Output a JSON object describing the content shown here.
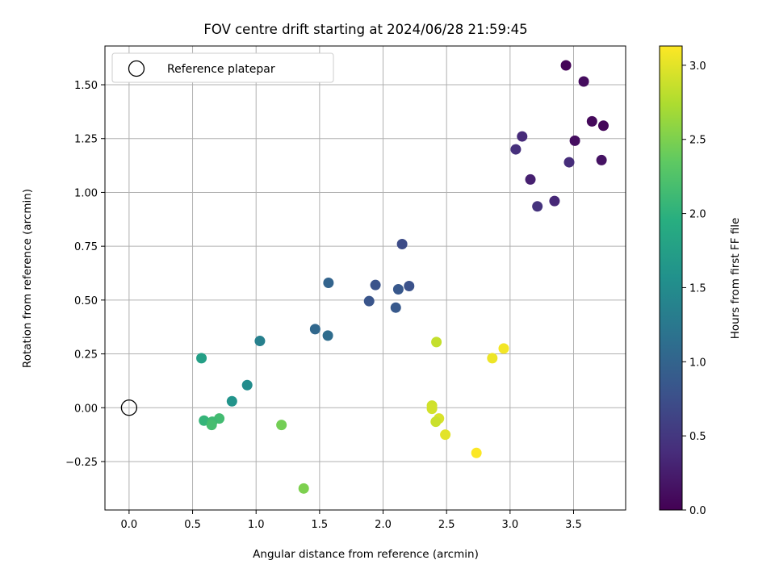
{
  "chart_data": {
    "type": "scatter",
    "title": "FOV centre drift starting at 2024/06/28 21:59:45",
    "xlabel": "Angular distance from reference (arcmin)",
    "ylabel": "Rotation from reference (arcmin)",
    "xlim": [
      -0.19,
      3.91
    ],
    "ylim": [
      -0.475,
      1.68
    ],
    "xticks": [
      0.0,
      0.5,
      1.0,
      1.5,
      2.0,
      2.5,
      3.0,
      3.5
    ],
    "xtick_labels": [
      "0.0",
      "0.5",
      "1.0",
      "1.5",
      "2.0",
      "2.5",
      "3.0",
      "3.5"
    ],
    "yticks": [
      -0.25,
      0.0,
      0.25,
      0.5,
      0.75,
      1.0,
      1.25,
      1.5
    ],
    "ytick_labels": [
      "−0.25",
      "0.00",
      "0.25",
      "0.50",
      "0.75",
      "1.00",
      "1.25",
      "1.50"
    ],
    "grid": true,
    "legend": {
      "placement": "top-left",
      "entries": [
        {
          "label": "Reference platepar",
          "marker": "hollow-circle"
        }
      ]
    },
    "reference_point": {
      "x": 0.0,
      "y": 0.0
    },
    "colorbar": {
      "label": "Hours from first FF file",
      "colormap": "viridis",
      "range": [
        0.0,
        3.13
      ],
      "ticks": [
        0.0,
        0.5,
        1.0,
        1.5,
        2.0,
        2.5,
        3.0
      ],
      "tick_labels": [
        "0.0",
        "0.5",
        "1.0",
        "1.5",
        "2.0",
        "2.5",
        "3.0"
      ]
    },
    "points": [
      {
        "x": 3.44,
        "y": 1.59,
        "c": 0.03
      },
      {
        "x": 3.58,
        "y": 1.515,
        "c": 0.1
      },
      {
        "x": 3.645,
        "y": 1.33,
        "c": 0.07
      },
      {
        "x": 3.735,
        "y": 1.31,
        "c": 0.05
      },
      {
        "x": 3.51,
        "y": 1.24,
        "c": 0.12
      },
      {
        "x": 3.72,
        "y": 1.15,
        "c": 0.15
      },
      {
        "x": 3.095,
        "y": 1.26,
        "c": 0.37
      },
      {
        "x": 3.045,
        "y": 1.2,
        "c": 0.42
      },
      {
        "x": 3.465,
        "y": 1.14,
        "c": 0.4
      },
      {
        "x": 3.16,
        "y": 1.06,
        "c": 0.28
      },
      {
        "x": 3.35,
        "y": 0.96,
        "c": 0.35
      },
      {
        "x": 3.215,
        "y": 0.935,
        "c": 0.45
      },
      {
        "x": 2.15,
        "y": 0.76,
        "c": 0.72
      },
      {
        "x": 1.57,
        "y": 0.58,
        "c": 1.0
      },
      {
        "x": 1.94,
        "y": 0.57,
        "c": 0.8
      },
      {
        "x": 2.205,
        "y": 0.565,
        "c": 0.78
      },
      {
        "x": 2.12,
        "y": 0.55,
        "c": 0.85
      },
      {
        "x": 1.89,
        "y": 0.495,
        "c": 0.82
      },
      {
        "x": 2.1,
        "y": 0.465,
        "c": 0.87
      },
      {
        "x": 1.465,
        "y": 0.365,
        "c": 1.05
      },
      {
        "x": 1.565,
        "y": 0.335,
        "c": 1.1
      },
      {
        "x": 1.03,
        "y": 0.31,
        "c": 1.35
      },
      {
        "x": 0.57,
        "y": 0.23,
        "c": 1.75
      },
      {
        "x": 0.93,
        "y": 0.105,
        "c": 1.5
      },
      {
        "x": 0.81,
        "y": 0.03,
        "c": 1.6
      },
      {
        "x": 0.59,
        "y": -0.06,
        "c": 2.05
      },
      {
        "x": 0.71,
        "y": -0.05,
        "c": 2.15
      },
      {
        "x": 0.655,
        "y": -0.065,
        "c": 2.12
      },
      {
        "x": 0.65,
        "y": -0.08,
        "c": 2.18
      },
      {
        "x": 1.2,
        "y": -0.08,
        "c": 2.45
      },
      {
        "x": 1.375,
        "y": -0.375,
        "c": 2.5
      },
      {
        "x": 2.42,
        "y": 0.305,
        "c": 2.85
      },
      {
        "x": 2.385,
        "y": 0.01,
        "c": 2.9
      },
      {
        "x": 2.385,
        "y": -0.005,
        "c": 2.92
      },
      {
        "x": 2.44,
        "y": -0.05,
        "c": 2.95
      },
      {
        "x": 2.415,
        "y": -0.065,
        "c": 2.88
      },
      {
        "x": 2.49,
        "y": -0.125,
        "c": 3.0
      },
      {
        "x": 2.86,
        "y": 0.23,
        "c": 3.05
      },
      {
        "x": 2.95,
        "y": 0.275,
        "c": 3.08
      },
      {
        "x": 2.735,
        "y": -0.21,
        "c": 3.12
      }
    ]
  }
}
